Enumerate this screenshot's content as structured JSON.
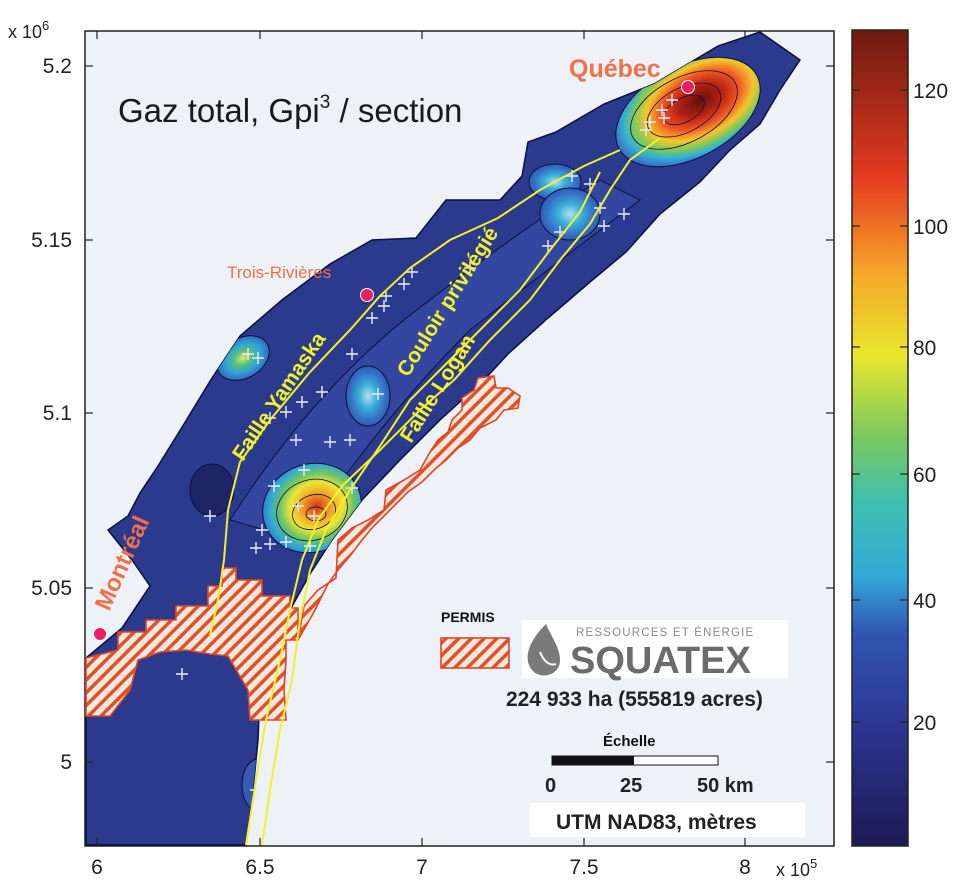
{
  "map": {
    "title": "Gaz total, Gpi",
    "title_superscript": "3",
    "title_suffix": " / section",
    "x_exponent_prefix": "x 10",
    "x_exponent_power": "5",
    "y_exponent_prefix": "x 10",
    "y_exponent_power": "6",
    "x_ticks": [
      "6",
      "6.5",
      "7",
      "7.5",
      "8"
    ],
    "y_ticks": [
      "5.2",
      "5.15",
      "5.1",
      "5.05",
      "5"
    ],
    "colorbar_ticks": [
      "120",
      "100",
      "80",
      "60",
      "40",
      "20"
    ],
    "cities": [
      {
        "name": "Québec",
        "color": "#f0704a"
      },
      {
        "name": "Trois-Rivières",
        "color": "#f0704a"
      },
      {
        "name": "Montréal",
        "color": "#f0704a"
      }
    ],
    "faults": [
      {
        "name": "Faille Yamaska"
      },
      {
        "name": "Couloir privilégié"
      },
      {
        "name": "Faille  Logan"
      }
    ],
    "legend": {
      "permis_label": "PERMIS",
      "company_tagline": "RESSOURCES ET ÉNERGIE",
      "company_name": "SQUATEX",
      "area": "224 933 ha (555819 acres)",
      "scale_title": "Échelle",
      "scale_ticks": [
        "0",
        "25",
        "50 km"
      ],
      "projection": "UTM NAD83, mètres"
    },
    "colors": {
      "background": "#eef2f7",
      "basin": "#2b3a8c",
      "contour_line": "#0b1040",
      "fault_line": "#f2f22a",
      "permit_stroke": "#e0452a",
      "city_dot": "#ea1f63"
    }
  }
}
